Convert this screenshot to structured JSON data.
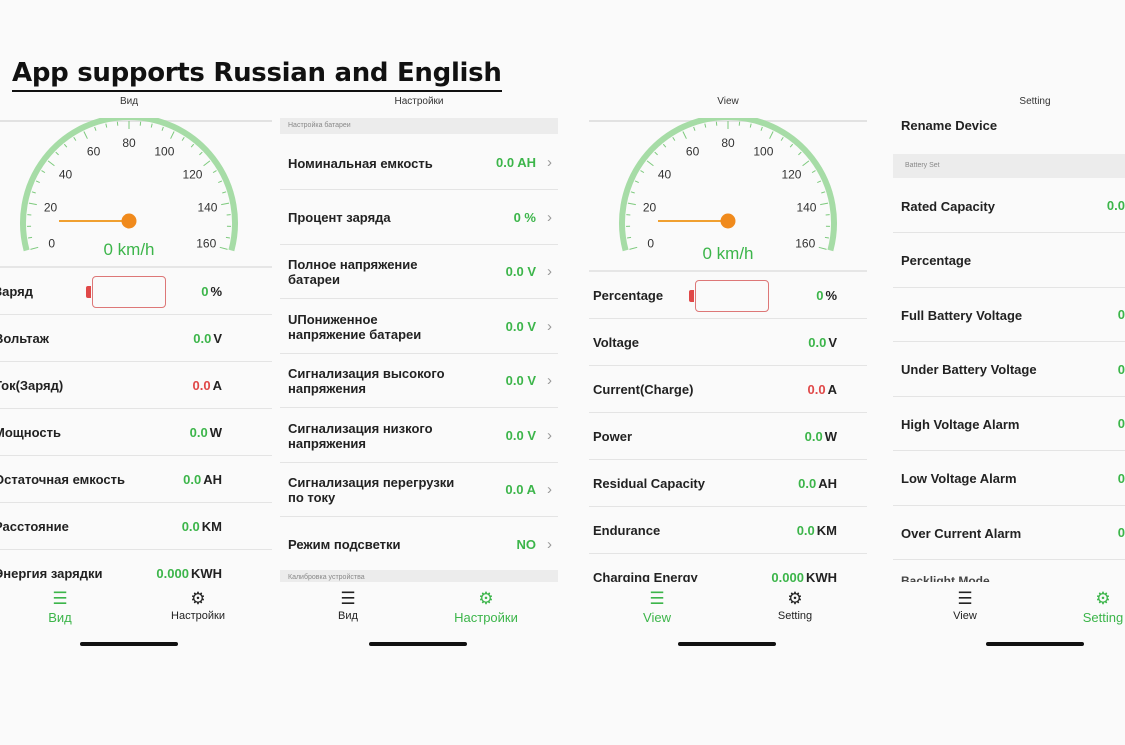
{
  "headline": "App supports Russian and English",
  "ru_view": {
    "title": "Вид",
    "speed": {
      "value": "0 km/h",
      "ticks": [
        "0",
        "20",
        "40",
        "60",
        "80",
        "100",
        "120",
        "140",
        "160"
      ],
      "max": 160,
      "current": 0
    },
    "rows": [
      {
        "label": "Заряд",
        "value": "0",
        "unit": "%",
        "battery": true
      },
      {
        "label": "Вольтаж",
        "value": "0.0",
        "unit": "V"
      },
      {
        "label": "Ток(Заряд)",
        "value": "0.0",
        "unit": "A",
        "red": true
      },
      {
        "label": "Мощность",
        "value": "0.0",
        "unit": "W"
      },
      {
        "label": "Остаточная емкость",
        "value": "0.0",
        "unit": "AH"
      },
      {
        "label": "Расстояние",
        "value": "0.0",
        "unit": "KM"
      },
      {
        "label": "Энергия зарядки",
        "value": "0.000",
        "unit": "KWH"
      }
    ],
    "tabs": {
      "view": "Вид",
      "settings": "Настройки"
    }
  },
  "ru_settings": {
    "title": "Настройки",
    "section": "Настройка батареи",
    "section2": "Калибровка устройства",
    "rows": [
      {
        "label": "Номинальная емкость",
        "value": "0.0 AH"
      },
      {
        "label": "Процент заряда",
        "value": "0 %"
      },
      {
        "label": "Полное напряжение батареи",
        "value": "0.0 V"
      },
      {
        "label": "UПониженное напряжение батареи",
        "value": "0.0 V"
      },
      {
        "label": "Сигнализация высокого напряжения",
        "value": "0.0 V"
      },
      {
        "label": "Сигнализация низкого напряжения",
        "value": "0.0 V"
      },
      {
        "label": "Сигнализация перегрузки по току",
        "value": "0.0 A"
      },
      {
        "label": "Режим подсветки",
        "value": "NO"
      }
    ],
    "tabs": {
      "view": "Вид",
      "settings": "Настройки"
    }
  },
  "en_view": {
    "title": "View",
    "speed": {
      "value": "0 km/h",
      "ticks": [
        "0",
        "20",
        "40",
        "60",
        "80",
        "100",
        "120",
        "140",
        "160"
      ],
      "max": 160,
      "current": 0
    },
    "rows": [
      {
        "label": "Percentage",
        "value": "0",
        "unit": "%",
        "battery": true
      },
      {
        "label": "Voltage",
        "value": "0.0",
        "unit": "V"
      },
      {
        "label": "Current(Charge)",
        "value": "0.0",
        "unit": "A",
        "red": true
      },
      {
        "label": "Power",
        "value": "0.0",
        "unit": "W"
      },
      {
        "label": "Residual Capacity",
        "value": "0.0",
        "unit": "AH"
      },
      {
        "label": "Endurance",
        "value": "0.0",
        "unit": "KM"
      },
      {
        "label": "Charging Energy",
        "value": "0.000",
        "unit": "KWH"
      }
    ],
    "tabs": {
      "view": "View",
      "settings": "Setting"
    }
  },
  "en_settings": {
    "title": "Setting",
    "rename": "Rename Device",
    "section": "Battery Set",
    "rows": [
      {
        "label": "Rated Capacity",
        "value": "0.0"
      },
      {
        "label": "Percentage",
        "value": ""
      },
      {
        "label": "Full Battery Voltage",
        "value": "0"
      },
      {
        "label": "Under Battery Voltage",
        "value": "0"
      },
      {
        "label": "High Voltage Alarm",
        "value": "0"
      },
      {
        "label": "Low Voltage Alarm",
        "value": "0"
      },
      {
        "label": "Over Current Alarm",
        "value": "0"
      }
    ],
    "cut_row": "Backlight Mode",
    "tabs": {
      "view": "View",
      "settings": "Setting"
    }
  },
  "colors": {
    "accent": "#3cb54a",
    "alert": "#e04848",
    "gauge_arc": "#a6dca6",
    "slider": "#f0a030"
  },
  "icons": {
    "view": "list-icon",
    "settings": "gear-icon"
  }
}
